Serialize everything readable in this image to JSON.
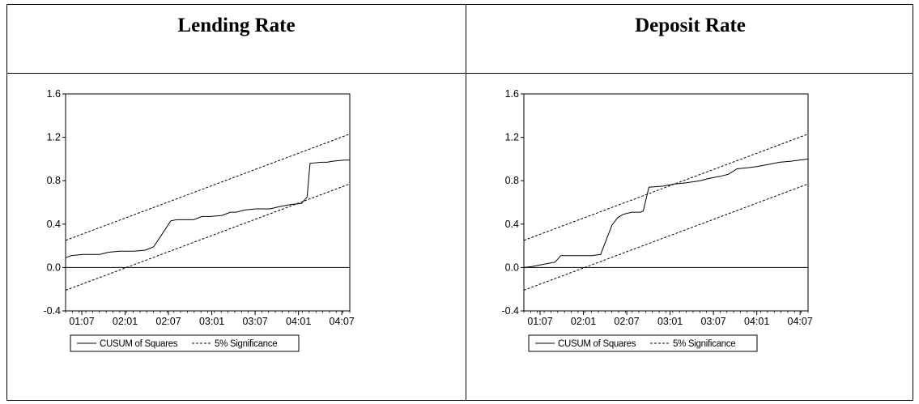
{
  "headers": {
    "left": "Lending Rate",
    "right": "Deposit Rate"
  },
  "chart_data": [
    {
      "type": "line",
      "panel": "Lending Rate",
      "x_ticks": [
        "01:07",
        "02:01",
        "02:07",
        "03:01",
        "03:07",
        "04:01",
        "04:07"
      ],
      "y_ticks": [
        "1.6",
        "1.2",
        "0.8",
        "0.4",
        "0.0",
        "-0.4"
      ],
      "ylim": [
        -0.4,
        1.6
      ],
      "legend": {
        "placement": "bottom",
        "cusum": "CUSUM of Squares",
        "significance": "5% Significance"
      },
      "series": [
        {
          "name": "CUSUM of Squares",
          "style": "solid",
          "points": [
            [
              0,
              0.09
            ],
            [
              0.02,
              0.11
            ],
            [
              0.06,
              0.12
            ],
            [
              0.12,
              0.12
            ],
            [
              0.15,
              0.14
            ],
            [
              0.19,
              0.15
            ],
            [
              0.24,
              0.15
            ],
            [
              0.28,
              0.16
            ],
            [
              0.31,
              0.19
            ],
            [
              0.37,
              0.43
            ],
            [
              0.39,
              0.44
            ],
            [
              0.45,
              0.44
            ],
            [
              0.48,
              0.47
            ],
            [
              0.51,
              0.47
            ],
            [
              0.55,
              0.48
            ],
            [
              0.58,
              0.51
            ],
            [
              0.6,
              0.51
            ],
            [
              0.63,
              0.53
            ],
            [
              0.67,
              0.54
            ],
            [
              0.72,
              0.54
            ],
            [
              0.75,
              0.56
            ],
            [
              0.79,
              0.58
            ],
            [
              0.83,
              0.59
            ],
            [
              0.85,
              0.65
            ],
            [
              0.86,
              0.96
            ],
            [
              0.9,
              0.97
            ],
            [
              0.92,
              0.97
            ],
            [
              0.94,
              0.98
            ],
            [
              0.98,
              0.99
            ],
            [
              1,
              0.99
            ]
          ]
        },
        {
          "name": "5% Significance upper",
          "style": "dashed",
          "points": [
            [
              0,
              0.25
            ],
            [
              1,
              1.23
            ]
          ]
        },
        {
          "name": "5% Significance lower",
          "style": "dashed",
          "points": [
            [
              0,
              -0.21
            ],
            [
              1,
              0.77
            ]
          ]
        }
      ]
    },
    {
      "type": "line",
      "panel": "Deposit Rate",
      "x_ticks": [
        "01:07",
        "02:01",
        "02:07",
        "03:01",
        "03:07",
        "04:01",
        "04:07"
      ],
      "y_ticks": [
        "1.6",
        "1.2",
        "0.8",
        "0.4",
        "0.0",
        "-0.4"
      ],
      "ylim": [
        -0.4,
        1.6
      ],
      "legend": {
        "placement": "bottom",
        "cusum": "CUSUM of Squares",
        "significance": "5% Significance"
      },
      "series": [
        {
          "name": "CUSUM of Squares",
          "style": "solid",
          "points": [
            [
              0,
              0.0
            ],
            [
              0.03,
              0.01
            ],
            [
              0.07,
              0.03
            ],
            [
              0.11,
              0.05
            ],
            [
              0.13,
              0.11
            ],
            [
              0.17,
              0.11
            ],
            [
              0.24,
              0.11
            ],
            [
              0.27,
              0.12
            ],
            [
              0.31,
              0.39
            ],
            [
              0.33,
              0.46
            ],
            [
              0.35,
              0.49
            ],
            [
              0.38,
              0.51
            ],
            [
              0.41,
              0.51
            ],
            [
              0.42,
              0.52
            ],
            [
              0.44,
              0.74
            ],
            [
              0.49,
              0.75
            ],
            [
              0.53,
              0.77
            ],
            [
              0.57,
              0.78
            ],
            [
              0.62,
              0.8
            ],
            [
              0.65,
              0.82
            ],
            [
              0.69,
              0.84
            ],
            [
              0.72,
              0.86
            ],
            [
              0.75,
              0.91
            ],
            [
              0.79,
              0.92
            ],
            [
              0.82,
              0.93
            ],
            [
              0.86,
              0.95
            ],
            [
              0.9,
              0.97
            ],
            [
              0.94,
              0.98
            ],
            [
              0.97,
              0.99
            ],
            [
              1,
              1.0
            ]
          ]
        },
        {
          "name": "5% Significance upper",
          "style": "dashed",
          "points": [
            [
              0,
              0.25
            ],
            [
              1,
              1.23
            ]
          ]
        },
        {
          "name": "5% Significance lower",
          "style": "dashed",
          "points": [
            [
              0,
              -0.21
            ],
            [
              1,
              0.77
            ]
          ]
        }
      ]
    }
  ]
}
